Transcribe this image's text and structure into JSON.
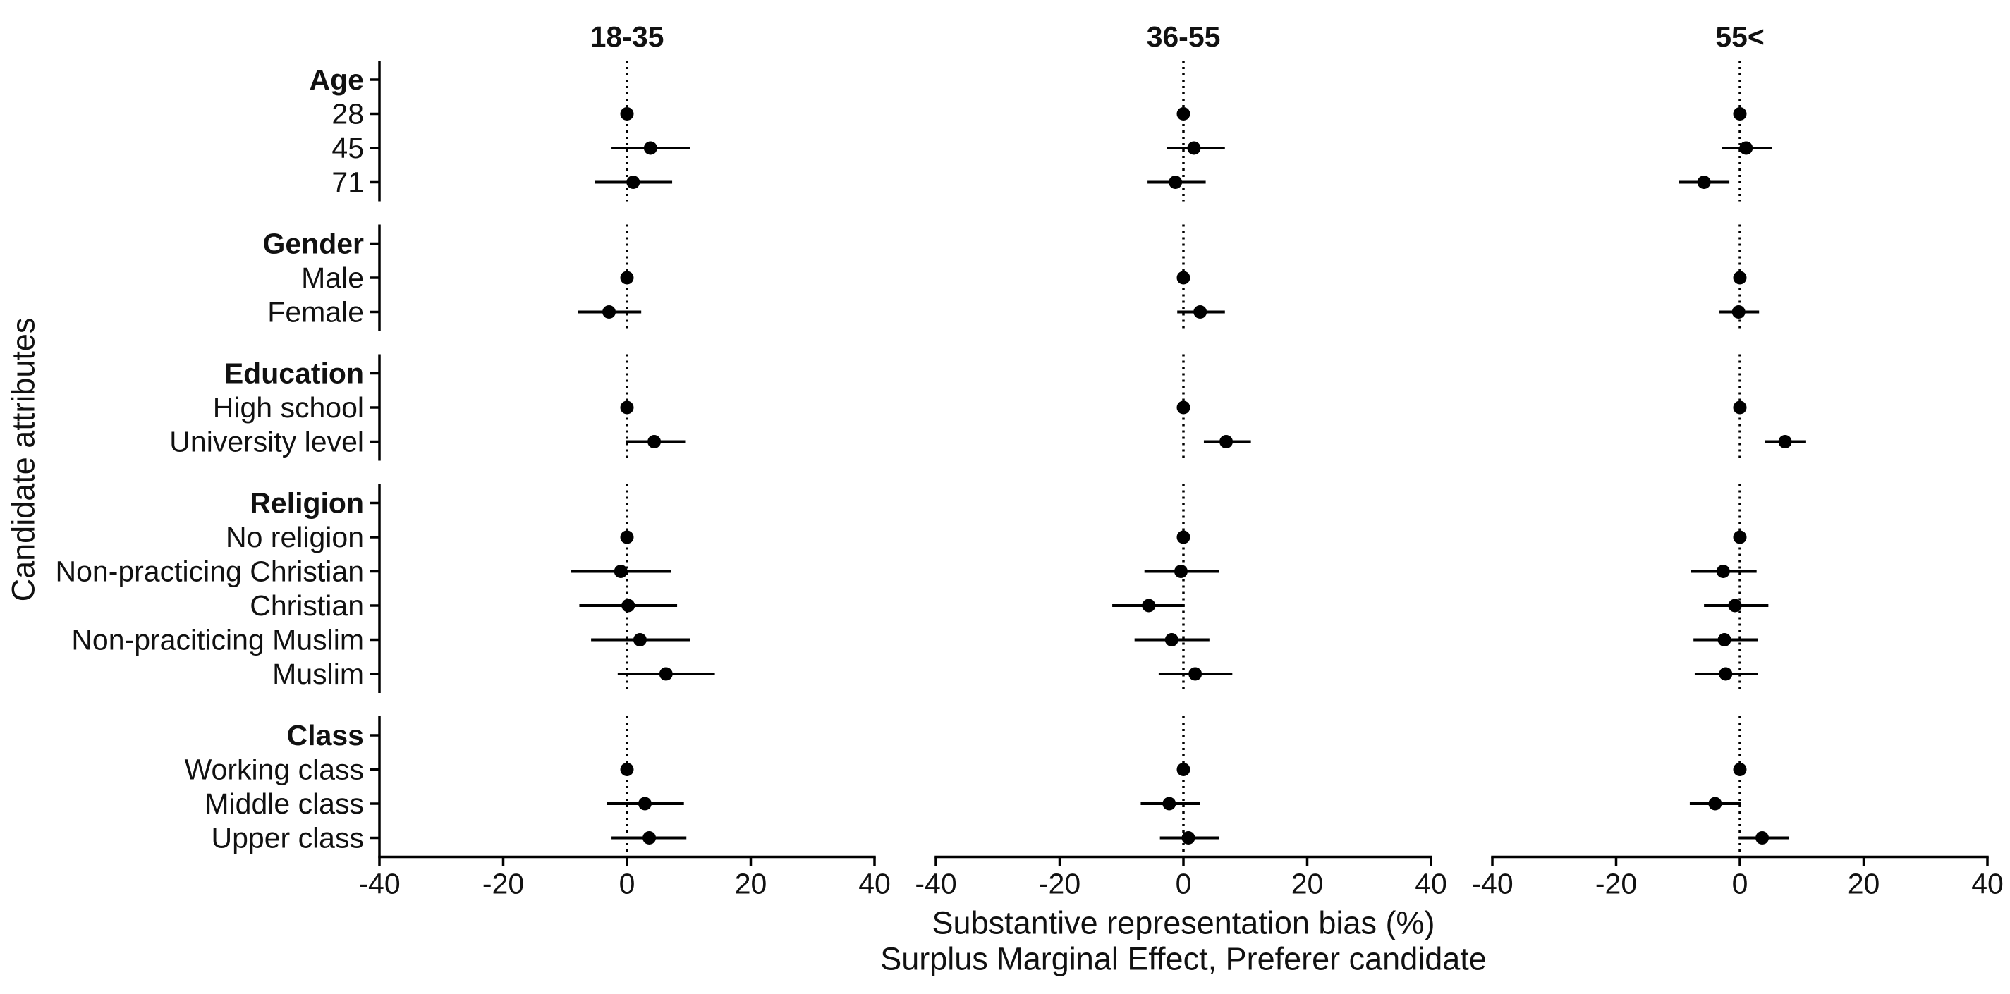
{
  "chart_data": {
    "type": "scatter",
    "error_bars": true,
    "panels": [
      "18-35",
      "36-55",
      "55<"
    ],
    "xlabel": [
      "Substantive representation bias (%)",
      "Surplus Marginal Effect, Preferer candidate"
    ],
    "ylabel": "Candidate attributes",
    "xlim": [
      -40,
      40
    ],
    "xticks": [
      -40,
      -20,
      0,
      20,
      40
    ],
    "reference_line_x": 0,
    "reference_line_style": "dotted",
    "grid": false,
    "legend": "none",
    "groups": [
      {
        "header": "Age",
        "items": [
          {
            "label": "28",
            "estimate": [
              0,
              0,
              0
            ],
            "ci_low": [
              null,
              null,
              null
            ],
            "ci_high": [
              null,
              null,
              null
            ]
          },
          {
            "label": "45",
            "estimate": [
              3.8,
              1.7,
              1.0
            ],
            "ci_low": [
              -2.5,
              -2.7,
              -2.9
            ],
            "ci_high": [
              10.2,
              6.7,
              5.2
            ]
          },
          {
            "label": "71",
            "estimate": [
              1.0,
              -1.3,
              -5.8
            ],
            "ci_low": [
              -5.2,
              -5.8,
              -9.8
            ],
            "ci_high": [
              7.3,
              3.6,
              -1.7
            ]
          }
        ]
      },
      {
        "header": "Gender",
        "items": [
          {
            "label": "Male",
            "estimate": [
              0,
              0,
              0
            ],
            "ci_low": [
              null,
              null,
              null
            ],
            "ci_high": [
              null,
              null,
              null
            ]
          },
          {
            "label": "Female",
            "estimate": [
              -2.9,
              2.7,
              -0.2
            ],
            "ci_low": [
              -7.9,
              -1.0,
              -3.3
            ],
            "ci_high": [
              2.3,
              6.7,
              3.1
            ]
          }
        ]
      },
      {
        "header": "Education",
        "items": [
          {
            "label": "High school",
            "estimate": [
              0,
              0,
              0
            ],
            "ci_low": [
              null,
              null,
              null
            ],
            "ci_high": [
              null,
              null,
              null
            ]
          },
          {
            "label": "University level",
            "estimate": [
              4.4,
              6.9,
              7.3
            ],
            "ci_low": [
              -0.2,
              3.3,
              4.0
            ],
            "ci_high": [
              9.4,
              10.9,
              10.7
            ]
          }
        ]
      },
      {
        "header": "Religion",
        "items": [
          {
            "label": "No religion",
            "estimate": [
              0,
              0,
              0
            ],
            "ci_low": [
              null,
              null,
              null
            ],
            "ci_high": [
              null,
              null,
              null
            ]
          },
          {
            "label": "Non-practicing Christian",
            "estimate": [
              -1.0,
              -0.4,
              -2.7
            ],
            "ci_low": [
              -9.0,
              -6.3,
              -7.9
            ],
            "ci_high": [
              7.1,
              5.8,
              2.7
            ]
          },
          {
            "label": "Christian",
            "estimate": [
              0.2,
              -5.6,
              -0.8
            ],
            "ci_low": [
              -7.7,
              -11.5,
              -5.8
            ],
            "ci_high": [
              8.1,
              0.2,
              4.6
            ]
          },
          {
            "label": "Non-praciticing Muslim",
            "estimate": [
              2.1,
              -1.9,
              -2.5
            ],
            "ci_low": [
              -5.8,
              -7.9,
              -7.5
            ],
            "ci_high": [
              10.2,
              4.2,
              2.9
            ]
          },
          {
            "label": "Muslim",
            "estimate": [
              6.3,
              1.9,
              -2.3
            ],
            "ci_low": [
              -1.5,
              -4.0,
              -7.3
            ],
            "ci_high": [
              14.2,
              7.9,
              2.9
            ]
          }
        ]
      },
      {
        "header": "Class",
        "items": [
          {
            "label": "Working class",
            "estimate": [
              0,
              0,
              0
            ],
            "ci_low": [
              null,
              null,
              null
            ],
            "ci_high": [
              null,
              null,
              null
            ]
          },
          {
            "label": "Middle class",
            "estimate": [
              2.9,
              -2.3,
              -4.0
            ],
            "ci_low": [
              -3.3,
              -6.9,
              -8.1
            ],
            "ci_high": [
              9.2,
              2.7,
              0.2
            ]
          },
          {
            "label": "Upper class",
            "estimate": [
              3.6,
              0.8,
              3.6
            ],
            "ci_low": [
              -2.5,
              -3.8,
              -0.2
            ],
            "ci_high": [
              9.6,
              5.8,
              7.9
            ]
          }
        ]
      }
    ],
    "colors": {
      "points": "#000000",
      "ci_lines": "#000000",
      "axes": "#000000",
      "text": "#111111",
      "background": "#ffffff"
    }
  }
}
